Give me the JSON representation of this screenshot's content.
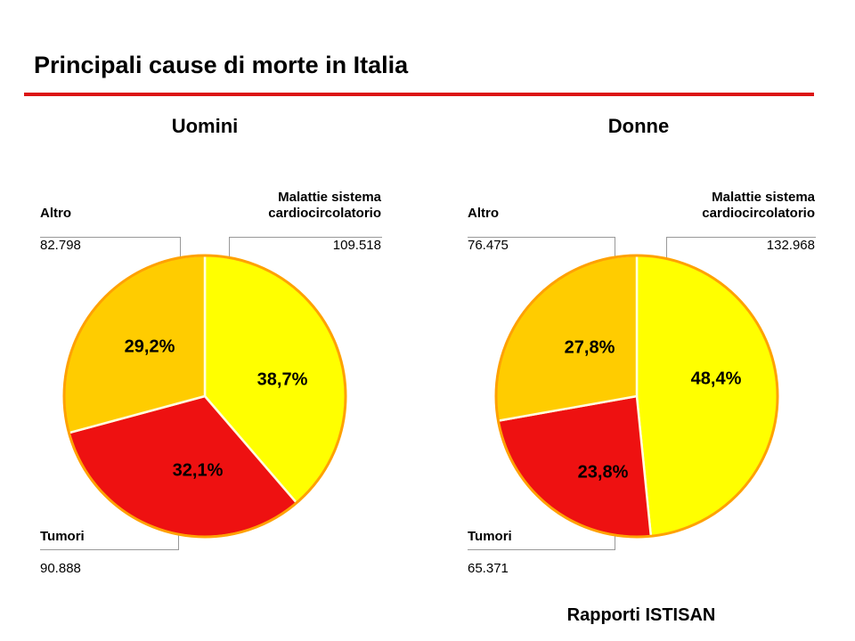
{
  "slide": {
    "title": "Principali cause di morte in Italia",
    "source": "Rapporti ISTISAN"
  },
  "colors": {
    "accent_rule": "#DC1414",
    "yellow": "#FFFF00",
    "red": "#EE1111",
    "orange": "#FFCC00",
    "pie_rim": "#FFA101",
    "slice_separator": "#FFFFE0",
    "leader_line": "#999999"
  },
  "chart_data": [
    {
      "type": "pie",
      "title": "Uomini",
      "start_angle_deg": 0,
      "direction": "clockwise",
      "slices": [
        {
          "label": "Malattie sistema cardiocircolatorio",
          "label_lines": "Malattie sistema\ncardiocircolatorio",
          "value": 109518,
          "value_text": "109.518",
          "percent": 38.7,
          "percent_text": "38,7%",
          "color": "#FFFF00"
        },
        {
          "label": "Tumori",
          "value": 90888,
          "value_text": "90.888",
          "percent": 32.1,
          "percent_text": "32,1%",
          "color": "#EE1111"
        },
        {
          "label": "Altro",
          "value": 82798,
          "value_text": "82.798",
          "percent": 29.2,
          "percent_text": "29,2%",
          "color": "#FFCC00"
        }
      ]
    },
    {
      "type": "pie",
      "title": "Donne",
      "start_angle_deg": 0,
      "direction": "clockwise",
      "slices": [
        {
          "label": "Malattie sistema cardiocircolatorio",
          "label_lines": "Malattie sistema\ncardiocircolatorio",
          "value": 132968,
          "value_text": "132.968",
          "percent": 48.4,
          "percent_text": "48,4%",
          "color": "#FFFF00"
        },
        {
          "label": "Tumori",
          "value": 65371,
          "value_text": "65.371",
          "percent": 23.8,
          "percent_text": "23,8%",
          "color": "#EE1111"
        },
        {
          "label": "Altro",
          "value": 76475,
          "value_text": "76.475",
          "percent": 27.8,
          "percent_text": "27,8%",
          "color": "#FFCC00"
        }
      ]
    }
  ]
}
